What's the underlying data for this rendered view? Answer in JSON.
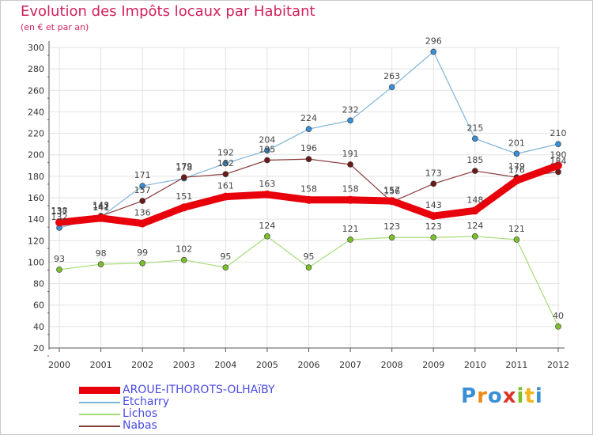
{
  "title": "Evolution des Impôts locaux par Habitant",
  "subtitle": "(en € et par an)",
  "logo": {
    "text": "Proxiti",
    "letters": [
      "P",
      "r",
      "o",
      "x",
      "i",
      "t",
      "i"
    ],
    "colors": [
      "#3a8fd6",
      "#f08a1c",
      "#3a8fd6",
      "#e0342c",
      "#7bbf2a",
      "#f0b41c",
      "#3a8fd6"
    ]
  },
  "chart_data": {
    "type": "line",
    "categories": [
      "2000",
      "2001",
      "2002",
      "2003",
      "2004",
      "2005",
      "2006",
      "2007",
      "2008",
      "2009",
      "2010",
      "2011",
      "2012"
    ],
    "ylim": [
      20,
      300
    ],
    "yticks": [
      20,
      40,
      60,
      80,
      100,
      120,
      140,
      160,
      180,
      200,
      220,
      240,
      260,
      280,
      300
    ],
    "grid": true,
    "series": [
      {
        "name": "AROUE-ITHOROTS-OLHAïBY",
        "color": "#e8000b",
        "point_color": "#e8000b",
        "width": 9,
        "radius": 5,
        "values": [
          137,
          141,
          136,
          151,
          161,
          163,
          158,
          158,
          157,
          143,
          148,
          176,
          190
        ],
        "labels": [
          "137",
          "141",
          "136",
          "151",
          "161",
          "163",
          "158",
          "158",
          "157",
          "143",
          "148",
          "176",
          "190"
        ]
      },
      {
        "name": "Etcharry",
        "color": "#7fb4d8",
        "point_color": "#3a8fd6",
        "width": 1.2,
        "radius": 3.5,
        "values": [
          132,
          142,
          171,
          178,
          192,
          204,
          224,
          232,
          263,
          296,
          215,
          201,
          210
        ],
        "labels": [
          "132",
          "142",
          "171",
          "178",
          "192",
          "204",
          "224",
          "232",
          "263",
          "296",
          "215",
          "201",
          "210"
        ]
      },
      {
        "name": "Lichos",
        "color": "#a8dc78",
        "point_color": "#7bbf2a",
        "width": 1.2,
        "radius": 3.5,
        "values": [
          93,
          98,
          99,
          102,
          95,
          124,
          95,
          121,
          123,
          123,
          124,
          121,
          40
        ],
        "labels": [
          "93",
          "98",
          "99",
          "102",
          "95",
          "124",
          "95",
          "121",
          "123",
          "123",
          "124",
          "121",
          "40"
        ]
      },
      {
        "name": "Nabas",
        "color": "#8b3a3a",
        "point_color": "#6a1a1a",
        "width": 1.2,
        "radius": 3.5,
        "values": [
          138,
          143,
          157,
          179,
          182,
          195,
          196,
          191,
          156,
          173,
          185,
          179,
          184
        ],
        "labels": [
          "138",
          "143",
          "157",
          "179",
          "182",
          "195",
          "196",
          "191",
          "156",
          "173",
          "185",
          "179",
          "184"
        ]
      }
    ]
  }
}
